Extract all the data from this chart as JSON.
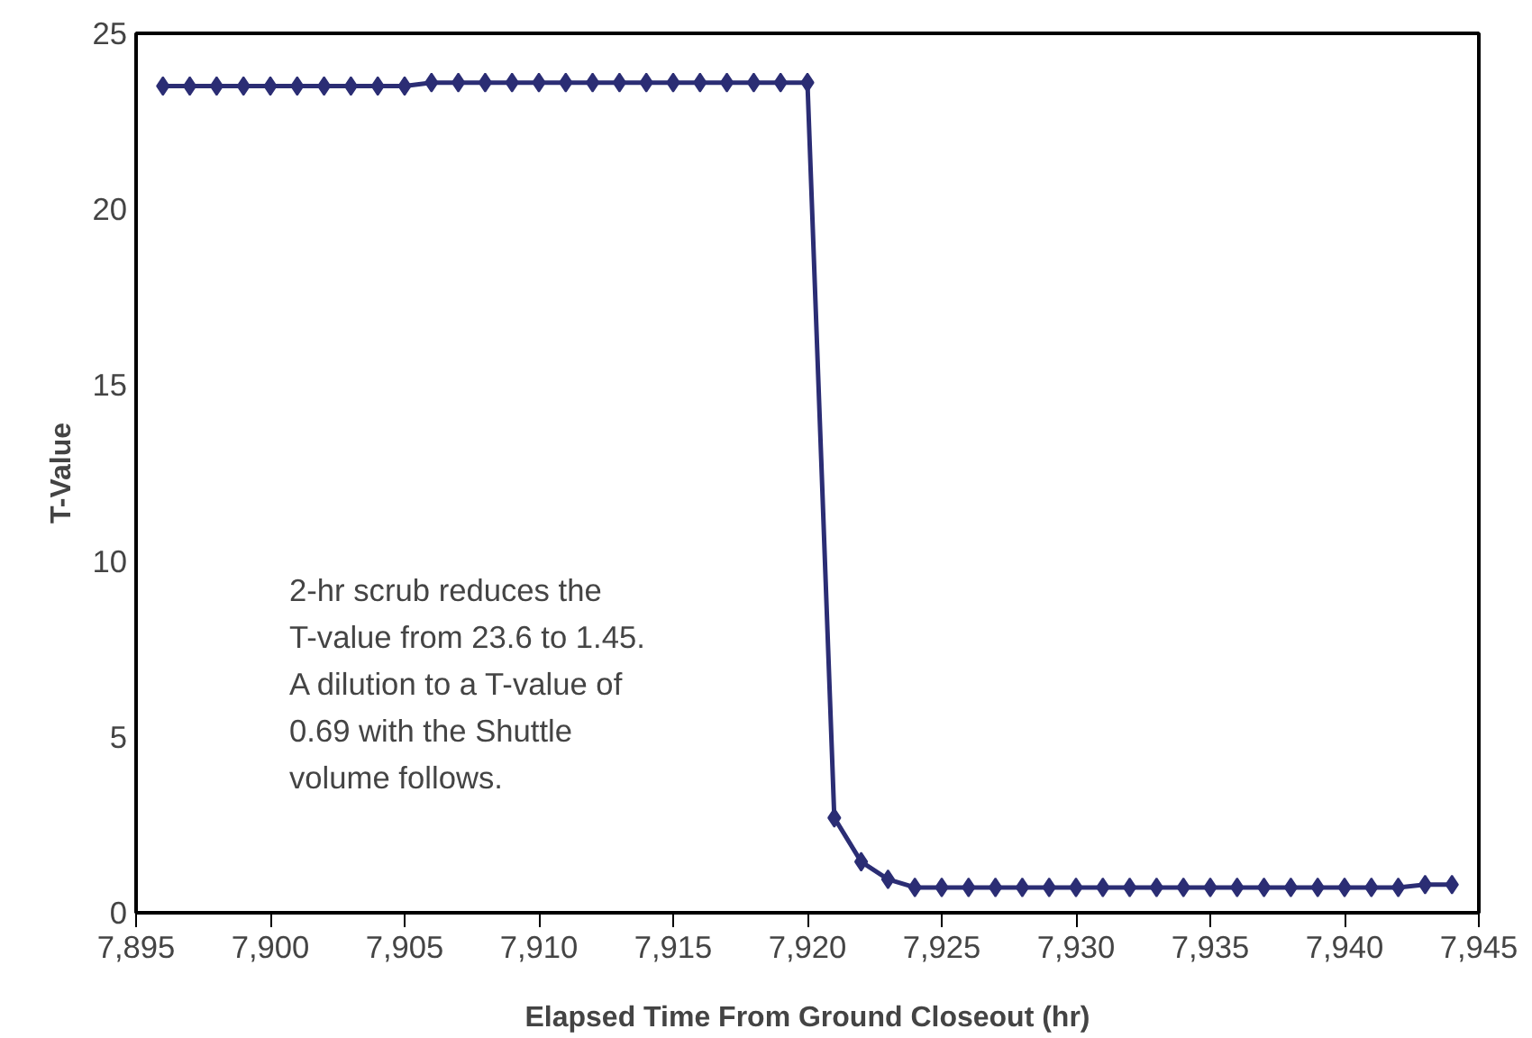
{
  "chart_data": {
    "type": "line",
    "xlabel": "Elapsed Time From Ground Closeout (hr)",
    "ylabel": "T-Value",
    "x": [
      7896,
      7897,
      7898,
      7899,
      7900,
      7901,
      7902,
      7903,
      7904,
      7905,
      7906,
      7907,
      7908,
      7909,
      7910,
      7911,
      7912,
      7913,
      7914,
      7915,
      7916,
      7917,
      7918,
      7919,
      7920,
      7921,
      7922,
      7923,
      7924,
      7925,
      7926,
      7927,
      7928,
      7929,
      7930,
      7931,
      7932,
      7933,
      7934,
      7935,
      7936,
      7937,
      7938,
      7939,
      7940,
      7941,
      7942,
      7943,
      7944
    ],
    "series": [
      {
        "color": "#2b2d74",
        "values": [
          23.5,
          23.5,
          23.5,
          23.5,
          23.5,
          23.5,
          23.5,
          23.5,
          23.5,
          23.5,
          23.6,
          23.6,
          23.6,
          23.6,
          23.6,
          23.6,
          23.6,
          23.6,
          23.6,
          23.6,
          23.6,
          23.6,
          23.6,
          23.6,
          23.6,
          2.7,
          1.45,
          0.95,
          0.72,
          0.72,
          0.72,
          0.72,
          0.72,
          0.72,
          0.72,
          0.72,
          0.72,
          0.72,
          0.72,
          0.72,
          0.72,
          0.72,
          0.72,
          0.72,
          0.72,
          0.72,
          0.72,
          0.8,
          0.8
        ]
      }
    ],
    "xlim": [
      7895,
      7945
    ],
    "ylim": [
      0,
      25
    ],
    "xticks": [
      {
        "value": 7895,
        "label": "7,895"
      },
      {
        "value": 7900,
        "label": "7,900"
      },
      {
        "value": 7905,
        "label": "7,905"
      },
      {
        "value": 7910,
        "label": "7,910"
      },
      {
        "value": 7915,
        "label": "7,915"
      },
      {
        "value": 7920,
        "label": "7,920"
      },
      {
        "value": 7925,
        "label": "7,925"
      },
      {
        "value": 7930,
        "label": "7,930"
      },
      {
        "value": 7935,
        "label": "7,935"
      },
      {
        "value": 7940,
        "label": "7,940"
      },
      {
        "value": 7945,
        "label": "7,945"
      }
    ],
    "yticks": [
      0,
      5,
      10,
      15,
      20,
      25
    ],
    "annotations": [
      "2-hr scrub reduces the\nT-value from 23.6 to 1.45.\nA dilution to a T-value of\n0.69 with the Shuttle\nvolume follows."
    ],
    "marker": "diamond",
    "line_style": "solid",
    "grid": false
  }
}
